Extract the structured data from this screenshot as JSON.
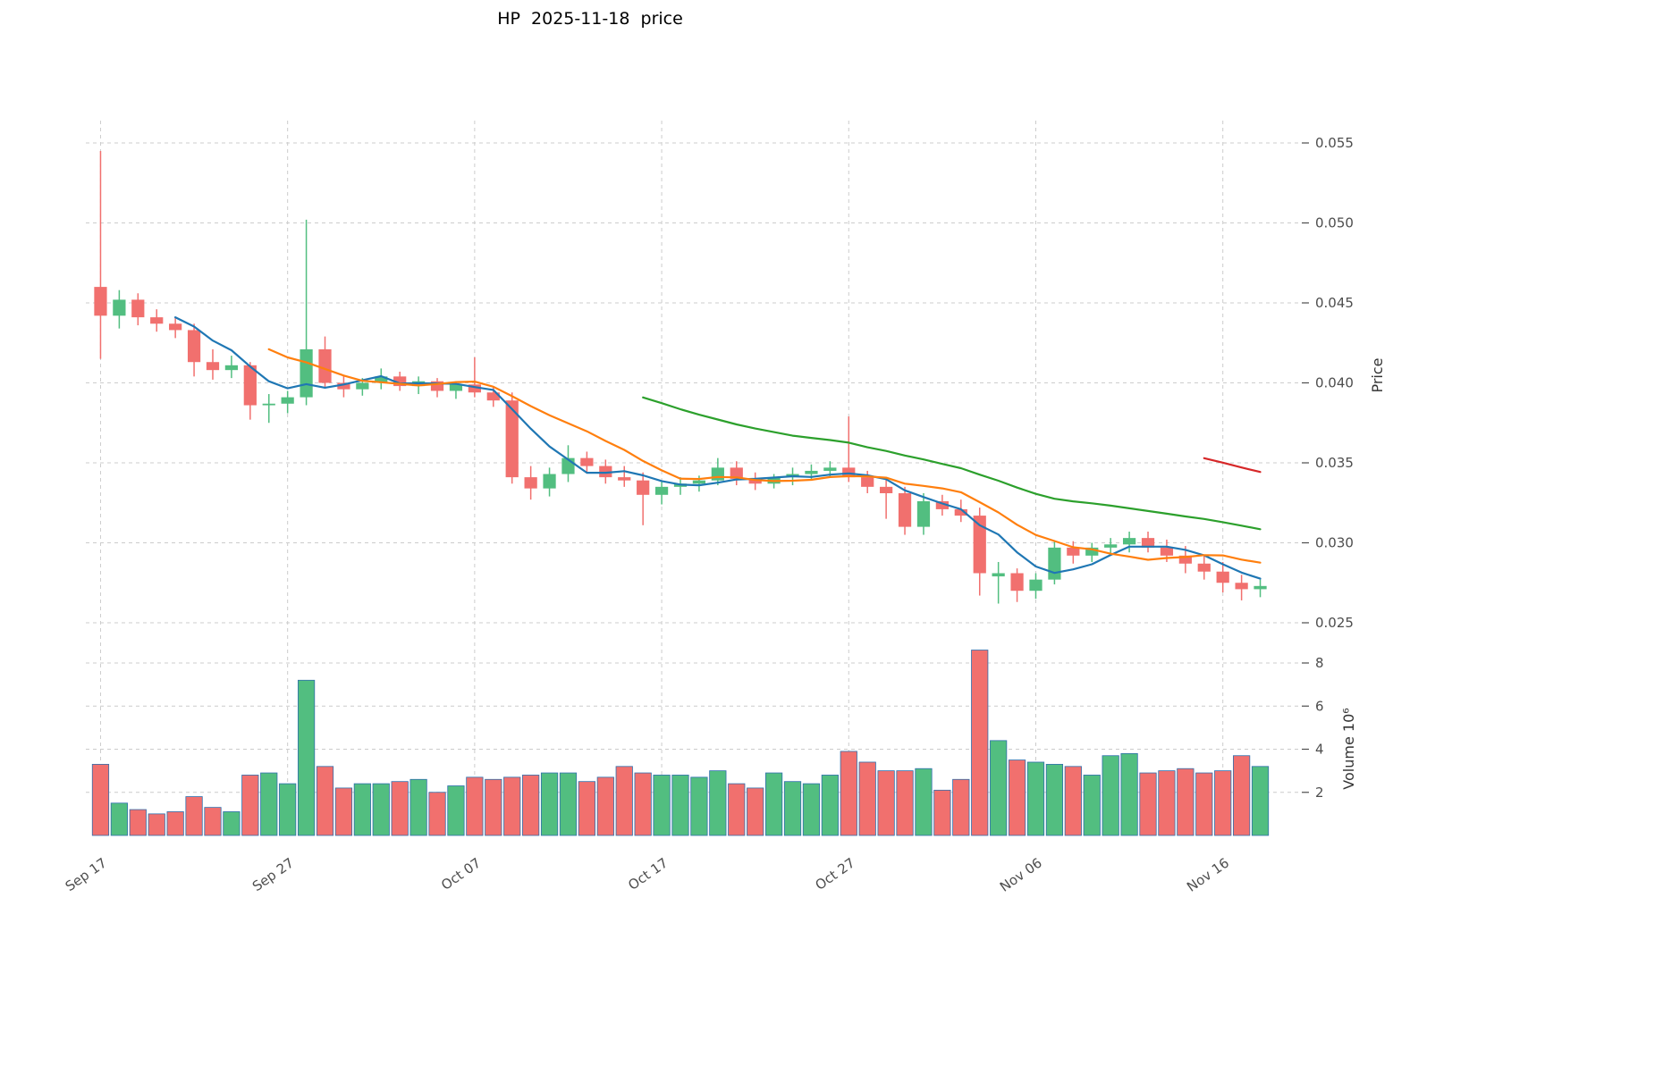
{
  "header": {
    "title": "HP  2025-11-18  price"
  },
  "chart_data": {
    "type": "candlestick",
    "title": "HP  2025-11-18  price",
    "grid": true,
    "legend": "none",
    "price_axis": {
      "label": "Price",
      "side": "right",
      "ticks": [
        {
          "value": 0.055,
          "label": "0.055"
        },
        {
          "value": 0.05,
          "label": "0.050"
        },
        {
          "value": 0.045,
          "label": "0.045"
        },
        {
          "value": 0.04,
          "label": "0.040"
        },
        {
          "value": 0.035,
          "label": "0.035"
        },
        {
          "value": 0.03,
          "label": "0.030"
        },
        {
          "value": 0.025,
          "label": "0.025"
        }
      ],
      "range": [
        0.0245,
        0.0565
      ]
    },
    "volume_axis": {
      "label": "Volume 10⁶",
      "side": "right",
      "unit": "10^6",
      "ticks": [
        {
          "value": 8,
          "label": "8"
        },
        {
          "value": 6,
          "label": "6"
        },
        {
          "value": 4,
          "label": "4"
        },
        {
          "value": 2,
          "label": "2"
        }
      ],
      "range": [
        0,
        9
      ]
    },
    "x_ticks": [
      {
        "index": 0,
        "label": "Sep 17"
      },
      {
        "index": 10,
        "label": "Sep 27"
      },
      {
        "index": 20,
        "label": "Oct 07"
      },
      {
        "index": 30,
        "label": "Oct 17"
      },
      {
        "index": 40,
        "label": "Oct 27"
      },
      {
        "index": 50,
        "label": "Nov 06"
      },
      {
        "index": 60,
        "label": "Nov 16"
      }
    ],
    "moving_averages": [
      {
        "window": 5,
        "color": "#1f77b4"
      },
      {
        "window": 10,
        "color": "#ff7f0e"
      },
      {
        "window": 30,
        "color": "#2ca02c"
      },
      {
        "window": 60,
        "color": "#d62728"
      }
    ],
    "colors": {
      "up": "#52BE80",
      "down": "#F1706E",
      "volume_edge": "#2f6fad",
      "grid": "#cccccc",
      "tick_text": "#4d4d4d",
      "axis_title_text": "#333333"
    },
    "dates": [
      "2025-09-17",
      "2025-09-18",
      "2025-09-19",
      "2025-09-20",
      "2025-09-21",
      "2025-09-22",
      "2025-09-23",
      "2025-09-24",
      "2025-09-25",
      "2025-09-26",
      "2025-09-27",
      "2025-09-28",
      "2025-09-29",
      "2025-09-30",
      "2025-10-01",
      "2025-10-02",
      "2025-10-03",
      "2025-10-04",
      "2025-10-05",
      "2025-10-06",
      "2025-10-07",
      "2025-10-08",
      "2025-10-09",
      "2025-10-10",
      "2025-10-11",
      "2025-10-12",
      "2025-10-13",
      "2025-10-14",
      "2025-10-15",
      "2025-10-16",
      "2025-10-17",
      "2025-10-18",
      "2025-10-19",
      "2025-10-20",
      "2025-10-21",
      "2025-10-22",
      "2025-10-23",
      "2025-10-24",
      "2025-10-25",
      "2025-10-26",
      "2025-10-27",
      "2025-10-28",
      "2025-10-29",
      "2025-10-30",
      "2025-10-31",
      "2025-11-01",
      "2025-11-02",
      "2025-11-03",
      "2025-11-04",
      "2025-11-05",
      "2025-11-06",
      "2025-11-07",
      "2025-11-08",
      "2025-11-09",
      "2025-11-10",
      "2025-11-11",
      "2025-11-12",
      "2025-11-13",
      "2025-11-14",
      "2025-11-15",
      "2025-11-16",
      "2025-11-17",
      "2025-11-18"
    ],
    "open": [
      0.046,
      0.0442,
      0.0452,
      0.0441,
      0.0437,
      0.0433,
      0.0413,
      0.0408,
      0.0411,
      0.0386,
      0.0387,
      0.0391,
      0.0421,
      0.04,
      0.0396,
      0.04,
      0.0404,
      0.0398,
      0.0401,
      0.0395,
      0.0399,
      0.0394,
      0.0389,
      0.0341,
      0.0334,
      0.0343,
      0.0353,
      0.0348,
      0.0341,
      0.0339,
      0.033,
      0.0335,
      0.0337,
      0.0339,
      0.0347,
      0.034,
      0.0337,
      0.0341,
      0.0343,
      0.0345,
      0.0347,
      0.0341,
      0.0335,
      0.0331,
      0.031,
      0.0326,
      0.0321,
      0.0317,
      0.0279,
      0.0281,
      0.027,
      0.0277,
      0.0297,
      0.0292,
      0.0297,
      0.0299,
      0.0303,
      0.0297,
      0.0292,
      0.0287,
      0.0282,
      0.0275,
      0.0271
    ],
    "high": [
      0.0545,
      0.0458,
      0.0456,
      0.0446,
      0.0441,
      0.0437,
      0.0421,
      0.0417,
      0.0413,
      0.0393,
      0.0395,
      0.0502,
      0.0429,
      0.0405,
      0.0403,
      0.0409,
      0.0407,
      0.0404,
      0.0403,
      0.0401,
      0.0416,
      0.0398,
      0.0394,
      0.0348,
      0.0347,
      0.0361,
      0.0357,
      0.0352,
      0.0348,
      0.0344,
      0.0338,
      0.0341,
      0.0342,
      0.0353,
      0.0351,
      0.0344,
      0.0343,
      0.0347,
      0.0349,
      0.0351,
      0.0379,
      0.0345,
      0.034,
      0.0335,
      0.0331,
      0.033,
      0.0327,
      0.0322,
      0.0288,
      0.0284,
      0.0281,
      0.0301,
      0.0301,
      0.03,
      0.0303,
      0.0307,
      0.0307,
      0.0302,
      0.0298,
      0.0292,
      0.0288,
      0.028,
      0.0277
    ],
    "low": [
      0.0415,
      0.0434,
      0.0436,
      0.0432,
      0.0428,
      0.0404,
      0.0402,
      0.0403,
      0.0377,
      0.0375,
      0.0381,
      0.0386,
      0.0397,
      0.0391,
      0.0392,
      0.0396,
      0.0395,
      0.0393,
      0.0391,
      0.039,
      0.0391,
      0.0385,
      0.0337,
      0.0327,
      0.0329,
      0.0338,
      0.0344,
      0.0337,
      0.0335,
      0.0311,
      0.0324,
      0.033,
      0.0332,
      0.0336,
      0.0336,
      0.0333,
      0.0334,
      0.0336,
      0.0339,
      0.0341,
      0.0338,
      0.0331,
      0.0315,
      0.0305,
      0.0305,
      0.0317,
      0.0313,
      0.0267,
      0.0262,
      0.0263,
      0.0265,
      0.0274,
      0.0287,
      0.0288,
      0.0292,
      0.0294,
      0.0294,
      0.0288,
      0.0281,
      0.0277,
      0.0269,
      0.0264,
      0.0266
    ],
    "close": [
      0.0442,
      0.0452,
      0.0441,
      0.0437,
      0.0433,
      0.0413,
      0.0408,
      0.0411,
      0.0386,
      0.0387,
      0.0391,
      0.0421,
      0.04,
      0.0396,
      0.04,
      0.0404,
      0.0398,
      0.0401,
      0.0395,
      0.0399,
      0.0394,
      0.0389,
      0.0341,
      0.0334,
      0.0343,
      0.0353,
      0.0348,
      0.0341,
      0.0339,
      0.033,
      0.0335,
      0.0337,
      0.0339,
      0.0347,
      0.034,
      0.0337,
      0.0341,
      0.0343,
      0.0345,
      0.0347,
      0.0341,
      0.0335,
      0.0331,
      0.031,
      0.0326,
      0.0321,
      0.0317,
      0.0281,
      0.0281,
      0.027,
      0.0277,
      0.0297,
      0.0292,
      0.0297,
      0.0299,
      0.0303,
      0.0297,
      0.0292,
      0.0287,
      0.0282,
      0.0275,
      0.0271,
      0.0273
    ],
    "volume_millions": [
      3.3,
      1.5,
      1.2,
      1.0,
      1.1,
      1.8,
      1.3,
      1.1,
      2.8,
      2.9,
      2.4,
      7.2,
      3.2,
      2.2,
      2.4,
      2.4,
      2.5,
      2.6,
      2.0,
      2.3,
      2.7,
      2.6,
      2.7,
      2.8,
      2.9,
      2.9,
      2.5,
      2.7,
      3.2,
      2.9,
      2.8,
      2.8,
      2.7,
      3.0,
      2.4,
      2.2,
      2.9,
      2.5,
      2.4,
      2.8,
      3.9,
      3.4,
      3.0,
      3.0,
      3.1,
      2.1,
      2.6,
      8.6,
      4.4,
      3.5,
      3.4,
      3.3,
      3.2,
      2.8,
      3.7,
      3.8,
      2.9,
      3.0,
      3.1,
      2.9,
      3.0,
      3.7,
      3.2
    ]
  }
}
